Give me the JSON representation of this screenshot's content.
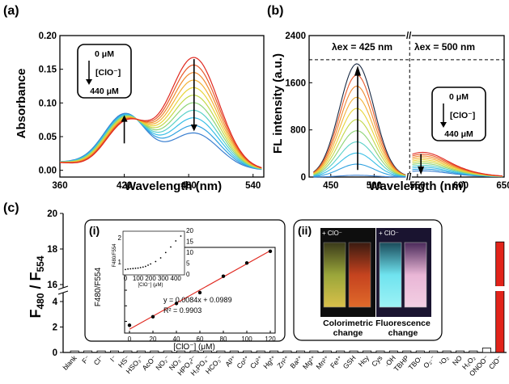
{
  "panels": {
    "a": "(a)",
    "b": "(b)",
    "c": "(c)",
    "ci": "(i)",
    "cii": "(ii)"
  },
  "colors": [
    "#3a7fd0",
    "#2fa1e0",
    "#37bfe6",
    "#58d0c8",
    "#8ed476",
    "#c2d84a",
    "#e8d53a",
    "#f3b136",
    "#ef8a2e",
    "#e85a2a",
    "#e0281f"
  ],
  "chart_data": [
    {
      "id": "a",
      "type": "line",
      "title": "",
      "xlabel": "Wavelength (nm)",
      "ylabel": "Absorbance",
      "xlim": [
        360,
        550
      ],
      "ylim": [
        -0.01,
        0.2
      ],
      "xticks": [
        360,
        420,
        480,
        540
      ],
      "yticks": [
        "0.00",
        "0.05",
        "0.10",
        "0.15",
        "0.20"
      ],
      "legend_box": {
        "top": "0 μM",
        "mid": "[ClO⁻]",
        "bottom": "440 μM"
      },
      "series_count": 11,
      "peak_420_range": [
        0.07,
        0.082
      ],
      "peak_485_range": [
        0.055,
        0.167
      ],
      "note": "arrows: up at 420 nm, down at 485 nm"
    },
    {
      "id": "b",
      "type": "line",
      "title": "",
      "xlabel": "Wavelength (nm)",
      "ylabel": "FL intensity (a.u.)",
      "xlim": [
        425,
        650
      ],
      "ylim": [
        0,
        2400
      ],
      "xticks": [
        450,
        500,
        550,
        600,
        650
      ],
      "yticks": [
        "0",
        "800",
        "1600",
        "2400"
      ],
      "ex_left": "λex = 425 nm",
      "ex_right": "λex = 500 nm",
      "legend_box": {
        "top": "0 μM",
        "mid": "[ClO⁻]",
        "bottom": "440 μM"
      },
      "series_count": 11,
      "peak_480_range": [
        30,
        1920
      ],
      "peak_554_range": [
        100,
        400
      ]
    },
    {
      "id": "c",
      "type": "bar",
      "title": "",
      "ylabel": "F480 / F554",
      "ylabel_main": "F",
      "ylabel_sub1": "480",
      "ylabel_sep": " / F",
      "ylabel_sub2": "554",
      "yticks_low": [
        "0",
        "2",
        "4"
      ],
      "yticks_high": [
        "16",
        "18",
        "20"
      ],
      "categories": [
        "blank",
        "F⁻",
        "Cl⁻",
        "I⁻",
        "HS⁻",
        "HSO₃⁻",
        "AcO⁻",
        "NO₂⁻",
        "NO₃⁻",
        "HPO₄²⁻",
        "H₂PO₄⁻",
        "HCO₃⁻",
        "Al³⁺",
        "Co²⁺",
        "Cu²⁺",
        "Hg²⁺",
        "Zn²⁺",
        "Ba²⁺",
        "Mg²⁺",
        "Mn²⁺",
        "Fe³⁺",
        "GSH",
        "Hcy",
        "Cys",
        "·OH",
        "TBHP",
        "TBO·",
        "O₂·⁻",
        "¹O₂",
        "NO",
        "H₂O₂",
        "ONOO⁻",
        "ClO⁻"
      ],
      "values": [
        0.12,
        0.12,
        0.12,
        0.12,
        0.12,
        0.12,
        0.12,
        0.12,
        0.12,
        0.12,
        0.12,
        0.12,
        0.12,
        0.12,
        0.12,
        0.12,
        0.12,
        0.12,
        0.12,
        0.12,
        0.12,
        0.12,
        0.12,
        0.12,
        0.12,
        0.12,
        0.12,
        0.12,
        0.12,
        0.12,
        0.12,
        0.35,
        18.4
      ],
      "highlight_color": "#e2231a"
    },
    {
      "id": "c-inset-i",
      "type": "scatter",
      "title": "",
      "xlabel": "[ClO⁻] (μM)",
      "ylabel": "F480/F554",
      "xticks": [
        "0",
        "20",
        "40",
        "60",
        "80",
        "100",
        "120"
      ],
      "yticks": [
        "0.2",
        "0.4",
        "0.6",
        "0.8",
        "1.0"
      ],
      "x": [
        0,
        20,
        40,
        60,
        80,
        100,
        120
      ],
      "y": [
        0.15,
        0.26,
        0.43,
        0.57,
        0.78,
        0.95,
        1.1
      ],
      "fit_text": "y = 0.0084x + 0.0989",
      "r2_text": "R² = 0.9903"
    },
    {
      "id": "c-inset-i-mini",
      "type": "scatter",
      "xlabel": "[ClO⁻] (μM)",
      "ylabel": "F480/F554",
      "xticks": [
        "0",
        "100",
        "200",
        "300",
        "400"
      ],
      "yticks_left": [
        "1",
        "2"
      ],
      "yticks_right": [
        "0",
        "5",
        "10",
        "15",
        "20"
      ],
      "x": [
        0,
        20,
        40,
        60,
        80,
        100,
        120,
        140,
        160,
        180,
        200,
        240,
        280,
        320,
        360,
        400,
        440
      ],
      "y": [
        0.72,
        0.74,
        0.75,
        0.76,
        0.77,
        0.78,
        0.8,
        0.82,
        0.85,
        0.9,
        0.95,
        1.05,
        1.2,
        1.42,
        1.65,
        1.9,
        2.1
      ]
    }
  ],
  "photo": {
    "plus_label_1": "+ ClO⁻",
    "plus_label_2": "+ ClO⁻",
    "caption_1a": "Colorimetric",
    "caption_1b": "change",
    "caption_2a": "Fluorescence",
    "caption_2b": "change"
  }
}
